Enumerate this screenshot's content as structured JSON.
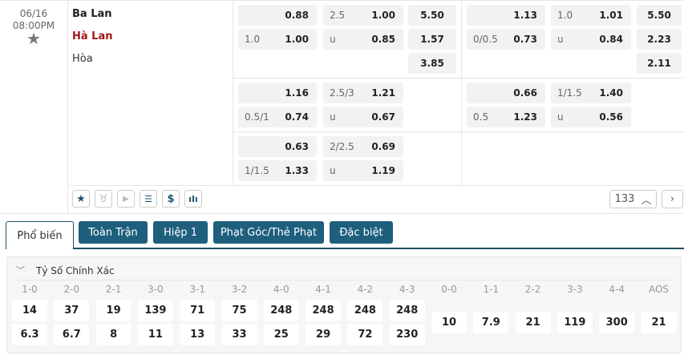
{
  "match": {
    "date": "06/16",
    "time": "08:00PM",
    "home": "Ba Lan",
    "away": "Hà Lan",
    "draw": "Hòa",
    "home_color": "#222222",
    "away_color": "#a01818"
  },
  "full_time": {
    "hdp": [
      {
        "top": [
          "",
          "0.88"
        ],
        "bot": [
          "1.0",
          "1.00"
        ]
      },
      {
        "top": [
          "",
          "1.16"
        ],
        "bot": [
          "0.5/1",
          "0.74"
        ]
      },
      {
        "top": [
          "",
          "0.63"
        ],
        "bot": [
          "1/1.5",
          "1.33"
        ]
      }
    ],
    "ou": [
      {
        "top": [
          "2.5",
          "1.00"
        ],
        "bot": [
          "u",
          "0.85"
        ]
      },
      {
        "top": [
          "2.5/3",
          "1.21"
        ],
        "bot": [
          "u",
          "0.67"
        ]
      },
      {
        "top": [
          "2/2.5",
          "0.69"
        ],
        "bot": [
          "u",
          "1.19"
        ]
      }
    ],
    "x12": [
      "5.50",
      "1.57",
      "3.85"
    ]
  },
  "first_half": {
    "hdp": [
      {
        "top": [
          "",
          "1.13"
        ],
        "bot": [
          "0/0.5",
          "0.73"
        ]
      },
      {
        "top": [
          "",
          "0.66"
        ],
        "bot": [
          "0.5",
          "1.23"
        ]
      }
    ],
    "ou": [
      {
        "top": [
          "1.0",
          "1.01"
        ],
        "bot": [
          "u",
          "0.84"
        ]
      },
      {
        "top": [
          "1/1.5",
          "1.40"
        ],
        "bot": [
          "u",
          "0.56"
        ]
      }
    ],
    "x12": [
      "5.50",
      "2.23",
      "2.11"
    ]
  },
  "toolbar": {
    "icons": [
      "star-icon",
      "mascot-icon",
      "play-icon",
      "list-icon",
      "dollar-icon",
      "chart-icon"
    ],
    "more_count": "133",
    "accent": "#1d5f7d"
  },
  "tabs": [
    "Phổ biến",
    "Toàn Trận",
    "Hiệp 1",
    "Phạt Góc/Thẻ Phạt",
    "Đặc biệt"
  ],
  "correct_score": {
    "title": "Tỷ Số Chính Xác",
    "labels": [
      "1-0",
      "2-0",
      "2-1",
      "3-0",
      "3-1",
      "3-2",
      "4-0",
      "4-1",
      "4-2",
      "4-3",
      "0-0",
      "1-1",
      "2-2",
      "3-3",
      "4-4",
      "AOS"
    ],
    "home": [
      "14",
      "37",
      "19",
      "139",
      "71",
      "75",
      "248",
      "248",
      "248",
      "248"
    ],
    "away": [
      "6.3",
      "6.7",
      "8",
      "11",
      "13",
      "33",
      "25",
      "29",
      "72",
      "230"
    ],
    "draws": [
      "10",
      "7.9",
      "21",
      "119",
      "300",
      "21"
    ]
  }
}
